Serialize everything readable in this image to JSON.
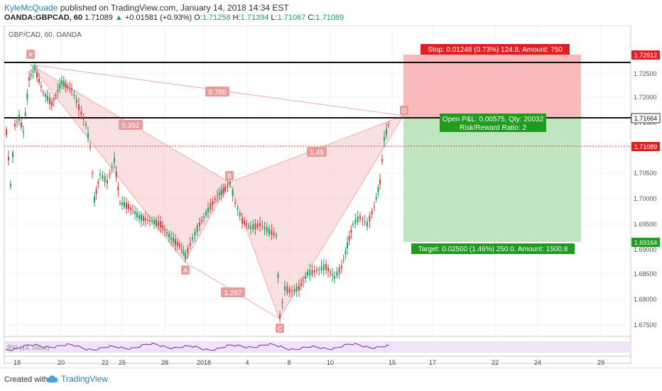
{
  "header": {
    "author": "KyleMcQuade",
    "published_text": "published on TradingView.com, January 14, 2018 14:34 EST",
    "symbol": "OANDA:GBPCAD, 60",
    "last": "1.71089",
    "change": "+0.01581 (+0.93%)",
    "o_label": "O:",
    "o_val": "1.71258",
    "h_label": "H:",
    "h_val": "1.71394",
    "l_label": "L:",
    "l_val": "1.71067",
    "c_label": "C:",
    "c_val": "1.71089"
  },
  "chart": {
    "instrument_label": "GBP/CAD, 60, OANDA",
    "price_ticks": [
      "1.72500",
      "1.72000",
      "1.71500",
      "1.71000",
      "1.70500",
      "1.70000",
      "1.69500",
      "1.69000",
      "1.68500",
      "1.68000",
      "1.67500"
    ],
    "time_ticks": [
      "18",
      "20",
      "22",
      "25",
      "28",
      "2018",
      "4",
      "8",
      "10",
      "15",
      "17",
      "22",
      "24",
      "29"
    ],
    "price_tags": {
      "stop_level": "1.72912",
      "horizontal_line": "1.71664",
      "last_price": "1.71089",
      "target_level": "1.69164"
    },
    "pattern_points": [
      "X",
      "A",
      "B",
      "C",
      "D"
    ],
    "ratios": {
      "xd": "0.786",
      "xb": "0.392",
      "bd": "1.49",
      "ac": "1.287"
    },
    "stop_label": "Stop: 0.01248 (0.73%) 124.8, Amount: 750",
    "pnl_label": "Open P&L: 0.00575, Qty: 20032",
    "rr_label": "Risk/Reward Ratio: 2",
    "target_label": "Target: 0.02500 (1.46%) 250.0, Amount: 1500.8",
    "rsi_label": "RSI (14, close)",
    "colors": {
      "up": "#19a15f",
      "down": "#e33b3b",
      "pattern": "#f2b6b6",
      "rsi": "#7b2aa8"
    }
  },
  "footer": {
    "created_with": "Created with",
    "brand": "TradingView"
  }
}
